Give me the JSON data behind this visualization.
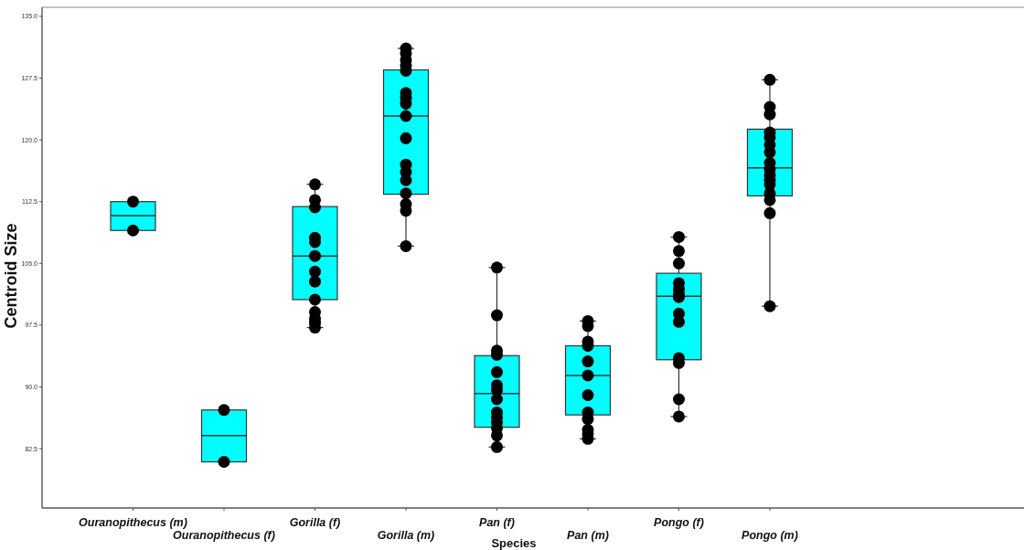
{
  "chart_data": {
    "type": "box",
    "xlabel": "Species",
    "ylabel": "Centroid Size",
    "categories": [
      "Ouranopithecus (m)",
      "Ouranopithecus (f)",
      "Gorilla (f)",
      "Gorilla (m)",
      "Pan (f)",
      "Pan (m)",
      "Pongo (f)",
      "Pongo (m)"
    ],
    "ylim": [
      75.3,
      136.1
    ],
    "yticks": [
      82.5,
      {
        "value": 90,
        "label": "90.0"
      },
      97.5,
      {
        "value": 105,
        "label": "105.0"
      },
      112.5,
      {
        "value": 120,
        "label": "120.0"
      },
      127.5,
      {
        "value": 135,
        "label": "135.0"
      }
    ],
    "marker": "circle",
    "series": [
      {
        "color": "#00ffff",
        "boxes": [
          {
            "low": 109.0,
            "q1": 109.0,
            "median": 110.8,
            "q3": 112.5,
            "high": 112.5
          },
          {
            "low": 80.9,
            "q1": 80.9,
            "median": 84.1,
            "q3": 87.2,
            "high": 87.2
          },
          {
            "low": 97.2,
            "q1": 100.6,
            "median": 105.9,
            "q3": 111.9,
            "high": 114.6
          },
          {
            "low": 107.1,
            "q1": 113.4,
            "median": 122.9,
            "q3": 128.5,
            "high": 131.1
          },
          {
            "low": 82.7,
            "q1": 85.1,
            "median": 89.2,
            "q3": 93.8,
            "high": 104.5
          },
          {
            "low": 83.7,
            "q1": 86.6,
            "median": 91.4,
            "q3": 95.0,
            "high": 98.0
          },
          {
            "low": 86.4,
            "q1": 93.3,
            "median": 101.0,
            "q3": 103.8,
            "high": 108.2
          },
          {
            "low": 99.8,
            "q1": 113.2,
            "median": 116.6,
            "q3": 121.3,
            "high": 127.3
          }
        ]
      },
      {
        "type": "scatter",
        "color": "#000000",
        "x": [
          "Ouranopithecus (m)",
          "Ouranopithecus (m)",
          "Ouranopithecus (f)",
          "Ouranopithecus (f)",
          "Gorilla (f)",
          "Gorilla (f)",
          "Gorilla (f)",
          "Gorilla (f)",
          "Gorilla (f)",
          "Gorilla (f)",
          "Gorilla (f)",
          "Gorilla (f)",
          "Gorilla (f)",
          "Gorilla (f)",
          "Gorilla (f)",
          "Gorilla (f)",
          "Gorilla (f)",
          "Gorilla (m)",
          "Gorilla (m)",
          "Gorilla (m)",
          "Gorilla (m)",
          "Gorilla (m)",
          "Gorilla (m)",
          "Gorilla (m)",
          "Gorilla (m)",
          "Gorilla (m)",
          "Gorilla (m)",
          "Gorilla (m)",
          "Gorilla (m)",
          "Gorilla (m)",
          "Gorilla (m)",
          "Gorilla (m)",
          "Gorilla (m)",
          "Gorilla (m)",
          "Pan (f)",
          "Pan (f)",
          "Pan (f)",
          "Pan (f)",
          "Pan (f)",
          "Pan (f)",
          "Pan (f)",
          "Pan (f)",
          "Pan (f)",
          "Pan (f)",
          "Pan (f)",
          "Pan (f)",
          "Pan (f)",
          "Pan (f)",
          "Pan (m)",
          "Pan (m)",
          "Pan (m)",
          "Pan (m)",
          "Pan (m)",
          "Pan (m)",
          "Pan (m)",
          "Pan (m)",
          "Pan (m)",
          "Pan (m)",
          "Pan (m)",
          "Pan (m)",
          "Pongo (f)",
          "Pongo (f)",
          "Pongo (f)",
          "Pongo (f)",
          "Pongo (f)",
          "Pongo (f)",
          "Pongo (f)",
          "Pongo (f)",
          "Pongo (f)",
          "Pongo (f)",
          "Pongo (f)",
          "Pongo (f)",
          "Pongo (f)",
          "Pongo (m)",
          "Pongo (m)",
          "Pongo (m)",
          "Pongo (m)",
          "Pongo (m)",
          "Pongo (m)",
          "Pongo (m)",
          "Pongo (m)",
          "Pongo (m)",
          "Pongo (m)",
          "Pongo (m)",
          "Pongo (m)",
          "Pongo (m)",
          "Pongo (m)",
          "Pongo (m)",
          "Pongo (m)"
        ],
        "values": [
          112.5,
          109.0,
          87.2,
          80.9,
          114.6,
          112.7,
          111.8,
          108.1,
          107.6,
          105.9,
          104.0,
          102.8,
          100.6,
          99.1,
          98.3,
          97.8,
          97.2,
          131.1,
          130.5,
          129.7,
          129.0,
          128.4,
          125.7,
          125.1,
          124.4,
          122.9,
          120.2,
          117.0,
          116.1,
          115.1,
          113.5,
          112.2,
          111.4,
          107.1,
          104.5,
          98.7,
          94.4,
          93.9,
          91.8,
          90.2,
          89.6,
          88.5,
          86.9,
          86.3,
          85.7,
          85.0,
          84.1,
          82.7,
          98.0,
          97.4,
          95.5,
          95.0,
          93.1,
          91.4,
          89.0,
          86.9,
          86.1,
          84.8,
          84.3,
          83.7,
          108.2,
          106.5,
          105.0,
          102.6,
          101.9,
          101.3,
          100.9,
          98.9,
          97.9,
          93.5,
          92.9,
          88.5,
          86.4,
          127.3,
          124.0,
          123.1,
          120.9,
          120.3,
          119.4,
          118.5,
          117.2,
          116.4,
          115.7,
          115.1,
          114.6,
          113.5,
          112.7,
          111.1,
          99.8
        ]
      }
    ]
  }
}
